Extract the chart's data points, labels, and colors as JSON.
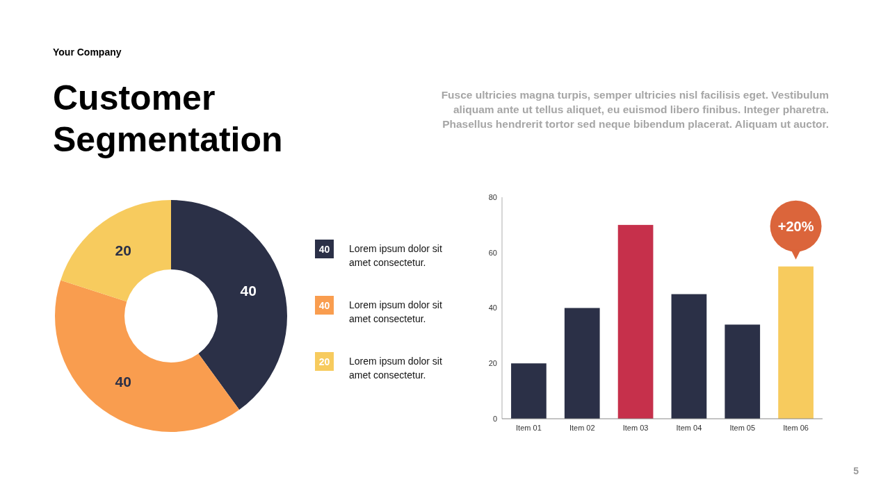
{
  "chart_data": [
    {
      "type": "donut",
      "title": "Customer Segmentation",
      "annotations": [
        "Your Company",
        "5",
        "40",
        "40",
        "20"
      ],
      "categories": [
        "Lorem ipsum dolor sit amet consectetur.",
        "Lorem ipsum dolor sit amet consectetur.",
        "Lorem ipsum dolor sit amet consectetur."
      ],
      "values": [
        40,
        40,
        20
      ],
      "colors": [
        "#2b3047",
        "#f99d4f",
        "#f7cb5e"
      ],
      "data_labels": true,
      "legend": "right"
    },
    {
      "type": "bar",
      "subtitle": "Fusce ultricies magna turpis, semper ultricies nisl facilisis eget. Vestibulum aliquam ante ut tellus aliquet, eu euismod libero finibus. Integer pharetra. Phasellus hendrerit tortor sed neque bibendum placerat. Aliquam ut auctor.",
      "categories": [
        "Item 01",
        "Item 02",
        "Item 03",
        "Item 04",
        "Item 05",
        "Item 06"
      ],
      "values": [
        20,
        40,
        70,
        45,
        34,
        55
      ],
      "colors": [
        "#2b3047",
        "#2b3047",
        "#c6304b",
        "#2b3047",
        "#2b3047",
        "#f7cb5e"
      ],
      "ylim": [
        0,
        80
      ],
      "yticks": [
        0,
        20,
        40,
        60,
        80
      ],
      "annotations": [
        {
          "text": "+20%",
          "x": "Item 06",
          "y": 55
        }
      ]
    }
  ]
}
